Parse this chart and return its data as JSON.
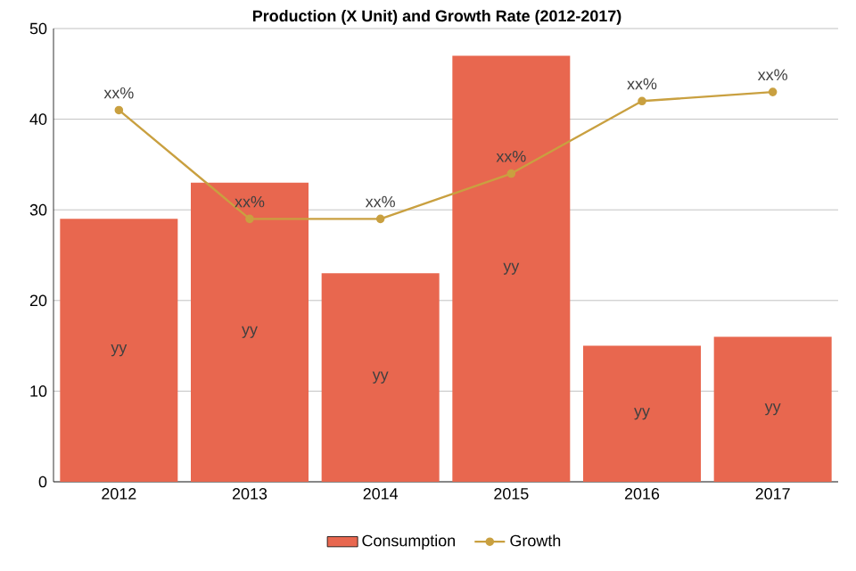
{
  "chart_data": {
    "type": "bar",
    "title": "Production (X Unit) and Growth Rate (2012-2017)",
    "categories": [
      "2012",
      "2013",
      "2014",
      "2015",
      "2016",
      "2017"
    ],
    "series": [
      {
        "name": "Consumption",
        "color": "#e8674f",
        "values": [
          29,
          33,
          23,
          47,
          15,
          16
        ],
        "value_labels": [
          "yy",
          "yy",
          "yy",
          "yy",
          "yy",
          "yy"
        ]
      },
      {
        "name": "Growth",
        "type": "line",
        "color": "#c9a040",
        "marker": "circle",
        "values": [
          41,
          29,
          29,
          34,
          42,
          43
        ],
        "value_labels": [
          "xx%",
          "xx%",
          "xx%",
          "xx%",
          "xx%",
          "xx%"
        ]
      }
    ],
    "ylim": [
      0,
      50
    ],
    "yticks": [
      0,
      10,
      20,
      30,
      40,
      50
    ],
    "grid": "y",
    "legend": "bottom"
  }
}
